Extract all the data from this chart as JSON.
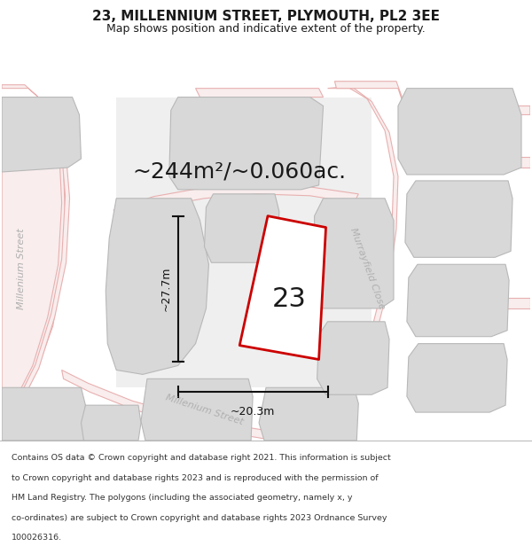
{
  "title": "23, MILLENNIUM STREET, PLYMOUTH, PL2 3EE",
  "subtitle": "Map shows position and indicative extent of the property.",
  "area_label": "~244m²/~0.060ac.",
  "number_label": "23",
  "dim_width": "~20.3m",
  "dim_height": "~27.7m",
  "street_label_left": "Millenium Street",
  "street_label_diagonal": "Millenium Street",
  "street_label_right": "Murrayfield Close",
  "footer_lines": [
    "Contains OS data © Crown copyright and database right 2021. This information is subject",
    "to Crown copyright and database rights 2023 and is reproduced with the permission of",
    "HM Land Registry. The polygons (including the associated geometry, namely x, y",
    "co-ordinates) are subject to Crown copyright and database rights 2023 Ordnance Survey",
    "100026316."
  ],
  "map_bg": "#ececec",
  "building_fill": "#d8d8d8",
  "building_edge": "#b8b8b8",
  "road_fill": "#f9eded",
  "road_edge": "#e8b0b0",
  "highlight_color": "#cc0000",
  "text_color": "#1a1a1a",
  "street_text_color": "#b0b0b0",
  "ann_color": "#111111",
  "title_size": 11,
  "subtitle_size": 9,
  "area_label_size": 18,
  "number_size": 22,
  "dim_size": 9,
  "street_size": 8,
  "footer_size": 6.8
}
